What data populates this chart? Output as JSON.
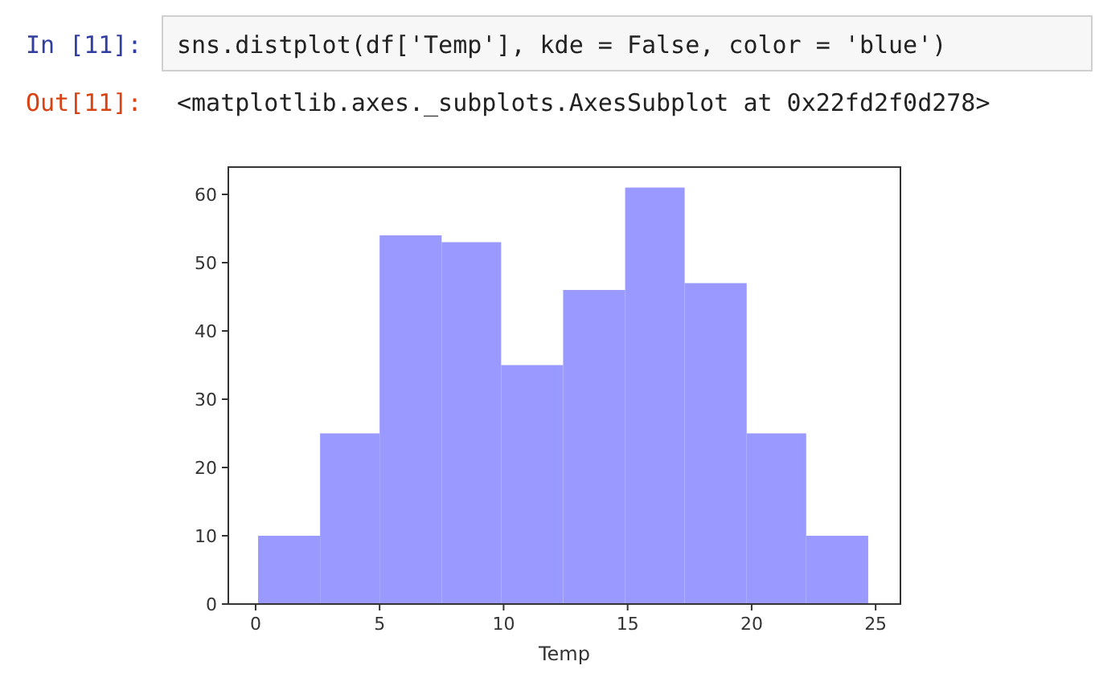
{
  "chart_data": {
    "type": "histogram",
    "xlabel": "Temp",
    "annotations": [
      "In [11]:",
      "sns.distplot(df['Temp'], kde = False, color = 'blue')",
      "Out[11]:",
      "<matplotlib.axes._subplots.AxesSubplot at 0x22fd2f0d278>"
    ],
    "bins": [
      0.1,
      2.6,
      5.0,
      7.5,
      9.9,
      12.4,
      14.9,
      17.3,
      19.8,
      22.2,
      24.7
    ],
    "values": [
      10,
      25,
      54,
      53,
      35,
      46,
      61,
      47,
      25,
      10
    ],
    "color": "#9999ff",
    "xlim": [
      -1.1,
      26.0
    ],
    "xticks": [
      0,
      5,
      10,
      15,
      20,
      25
    ],
    "ylim": [
      0,
      64
    ],
    "yticks": [
      0,
      10,
      20,
      30,
      40,
      50,
      60
    ],
    "grid": false
  }
}
